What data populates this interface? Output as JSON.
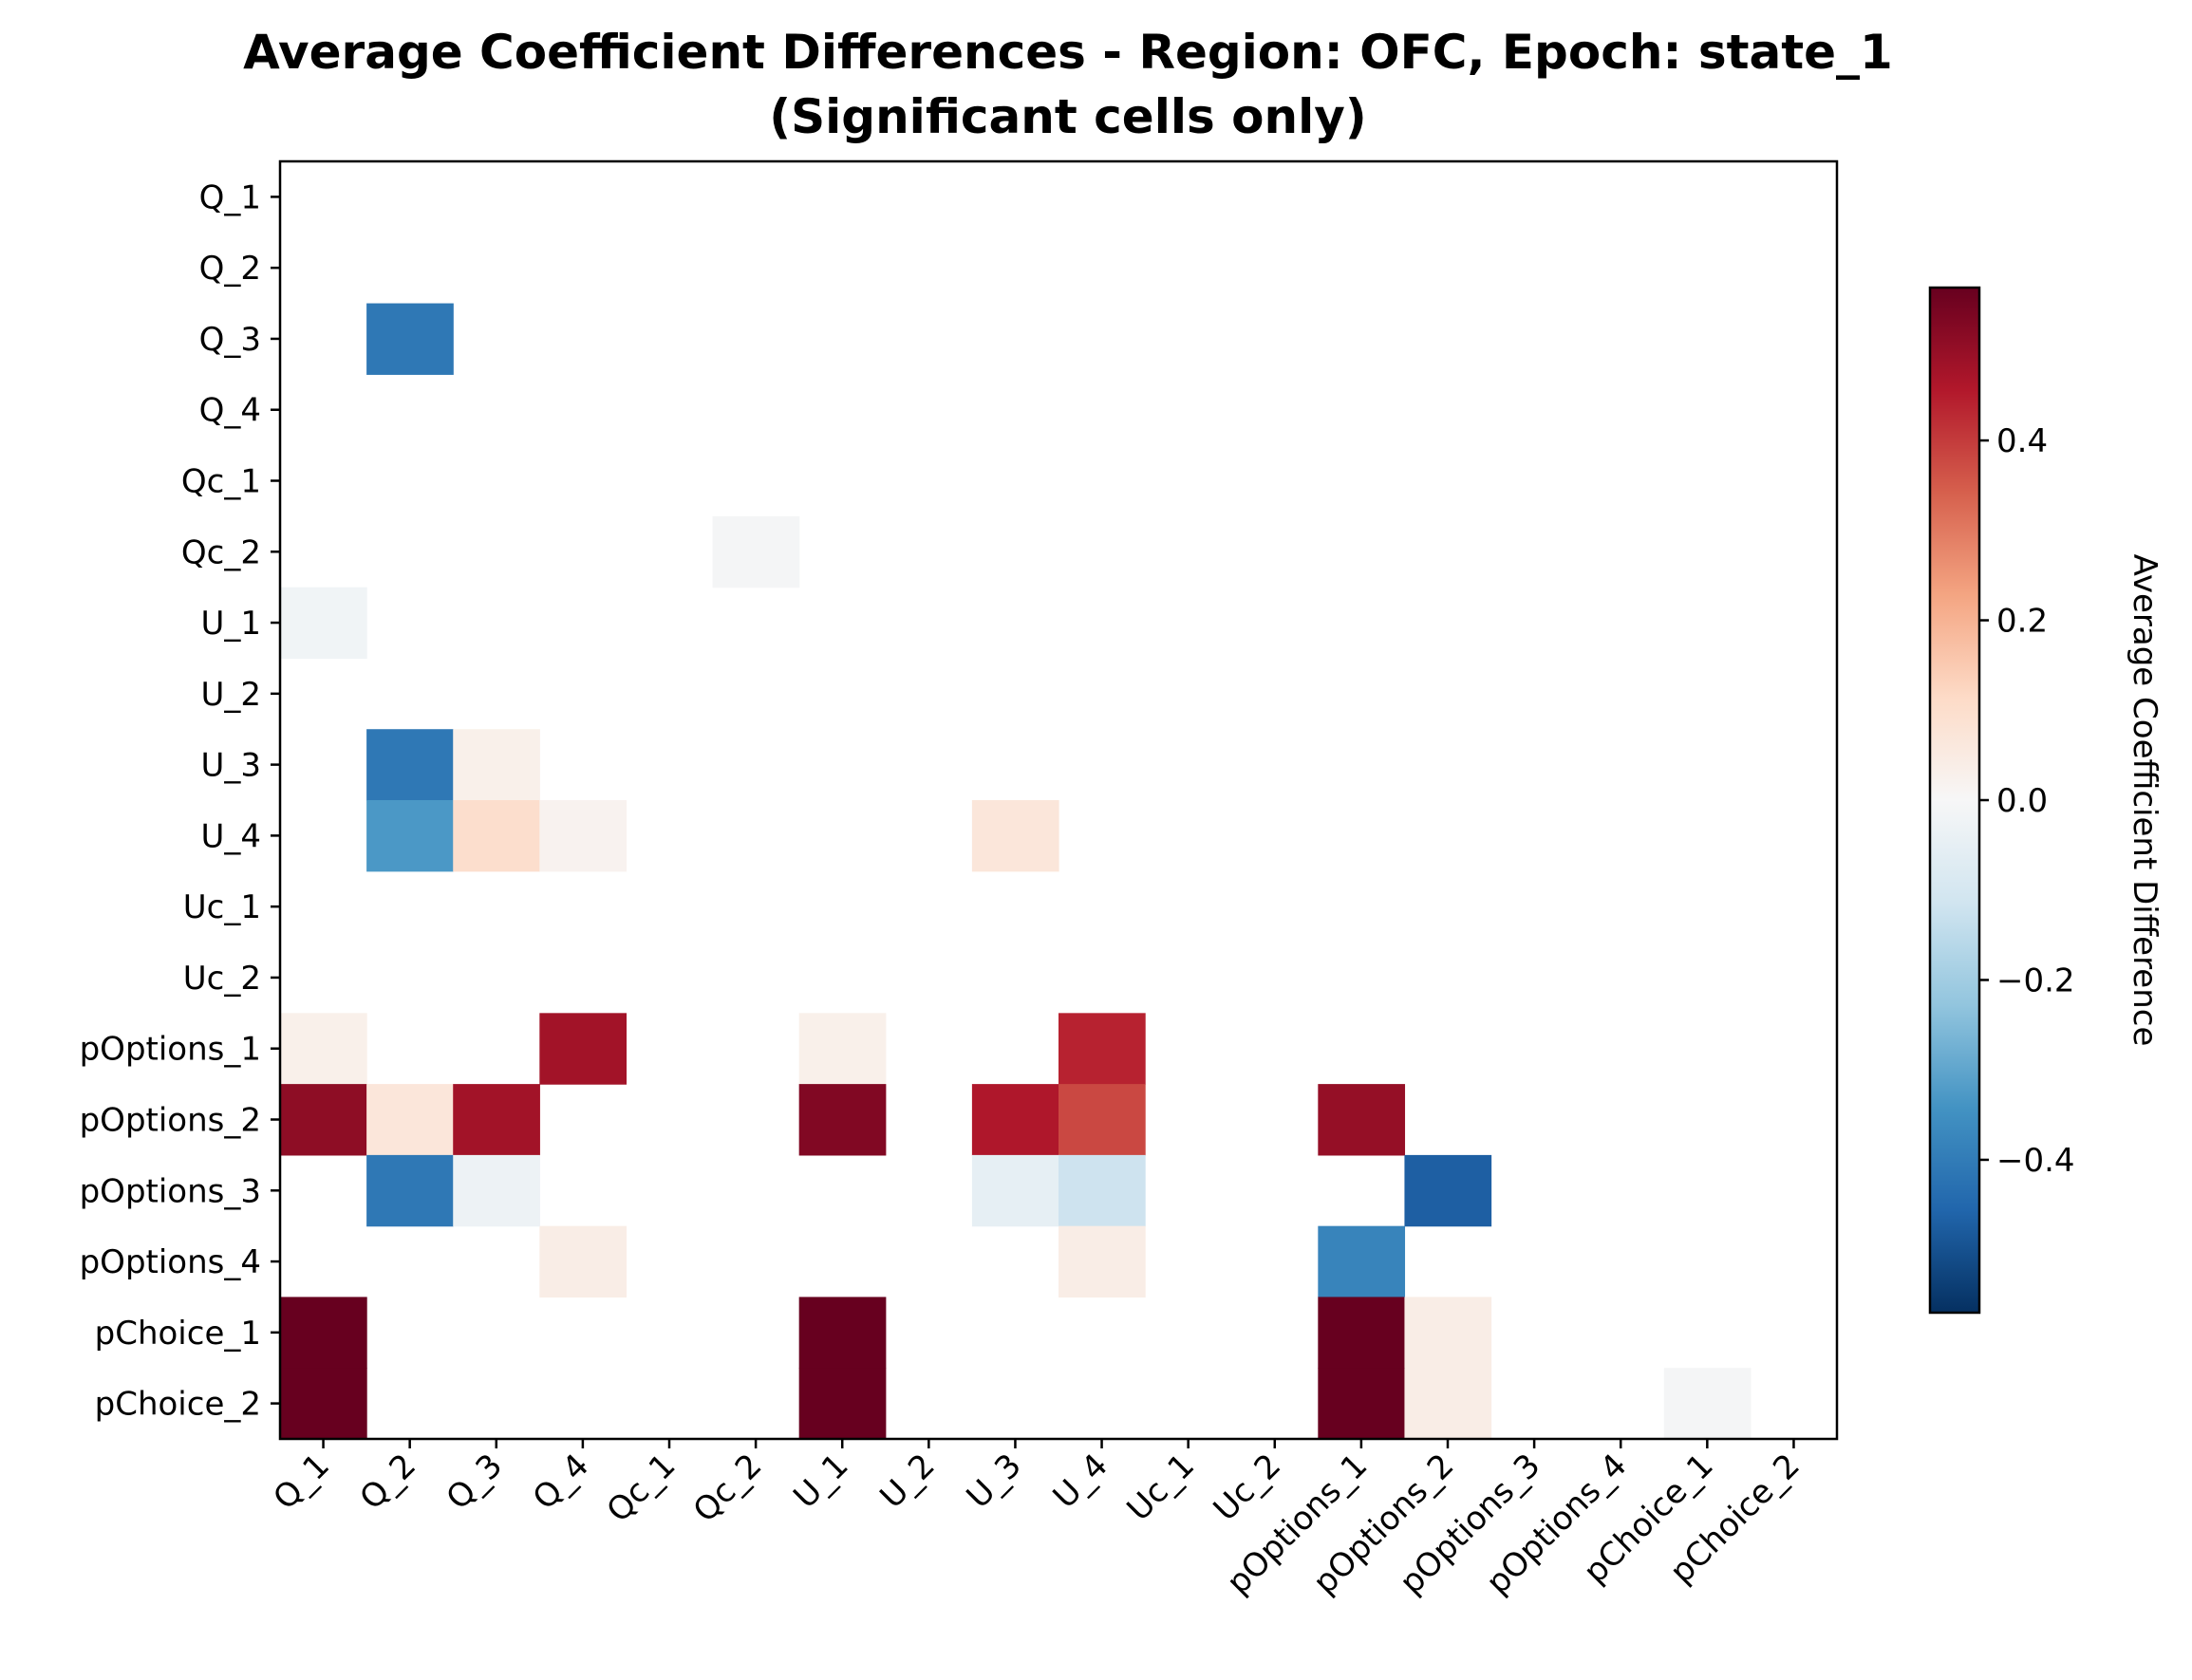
{
  "chart_data": {
    "type": "heatmap",
    "title": "Average Coefficient Differences - Region: OFC, Epoch: state_1",
    "subtitle": "(Significant cells only)",
    "x_labels": [
      "Q_1",
      "Q_2",
      "Q_3",
      "Q_4",
      "Qc_1",
      "Qc_2",
      "U_1",
      "U_2",
      "U_3",
      "U_4",
      "Uc_1",
      "Uc_2",
      "pOptions_1",
      "pOptions_2",
      "pOptions_3",
      "pOptions_4",
      "pChoice_1",
      "pChoice_2"
    ],
    "y_labels": [
      "Q_1",
      "Q_2",
      "Q_3",
      "Q_4",
      "Qc_1",
      "Qc_2",
      "U_1",
      "U_2",
      "U_3",
      "U_4",
      "Uc_1",
      "Uc_2",
      "pOptions_1",
      "pOptions_2",
      "pOptions_3",
      "pOptions_4",
      "pChoice_1",
      "pChoice_2"
    ],
    "cells": [
      {
        "row": "Q_3",
        "col": "Q_2",
        "value": -0.41
      },
      {
        "row": "Qc_2",
        "col": "Qc_2",
        "value": -0.01
      },
      {
        "row": "U_1",
        "col": "Q_1",
        "value": -0.02
      },
      {
        "row": "U_3",
        "col": "Q_2",
        "value": -0.41
      },
      {
        "row": "U_3",
        "col": "Q_3",
        "value": 0.03
      },
      {
        "row": "U_4",
        "col": "Q_2",
        "value": -0.33
      },
      {
        "row": "U_4",
        "col": "Q_3",
        "value": 0.1
      },
      {
        "row": "U_4",
        "col": "Q_4",
        "value": 0.02
      },
      {
        "row": "U_4",
        "col": "U_3",
        "value": 0.07
      },
      {
        "row": "pOptions_1",
        "col": "Q_1",
        "value": 0.03
      },
      {
        "row": "pOptions_1",
        "col": "Q_4",
        "value": 0.48
      },
      {
        "row": "pOptions_1",
        "col": "U_1",
        "value": 0.03
      },
      {
        "row": "pOptions_1",
        "col": "U_4",
        "value": 0.44
      },
      {
        "row": "pOptions_2",
        "col": "Q_1",
        "value": 0.51
      },
      {
        "row": "pOptions_2",
        "col": "Q_2",
        "value": 0.07
      },
      {
        "row": "pOptions_2",
        "col": "Q_3",
        "value": 0.48
      },
      {
        "row": "pOptions_2",
        "col": "U_1",
        "value": 0.53
      },
      {
        "row": "pOptions_2",
        "col": "U_3",
        "value": 0.46
      },
      {
        "row": "pOptions_2",
        "col": "U_4",
        "value": 0.38
      },
      {
        "row": "pOptions_2",
        "col": "pOptions_1",
        "value": 0.5
      },
      {
        "row": "pOptions_3",
        "col": "Q_2",
        "value": -0.41
      },
      {
        "row": "pOptions_3",
        "col": "Q_3",
        "value": -0.03
      },
      {
        "row": "pOptions_3",
        "col": "U_3",
        "value": -0.05
      },
      {
        "row": "pOptions_3",
        "col": "U_4",
        "value": -0.12
      },
      {
        "row": "pOptions_3",
        "col": "pOptions_2",
        "value": -0.47
      },
      {
        "row": "pOptions_4",
        "col": "Q_4",
        "value": 0.04
      },
      {
        "row": "pOptions_4",
        "col": "U_4",
        "value": 0.04
      },
      {
        "row": "pOptions_4",
        "col": "pOptions_1",
        "value": -0.38
      },
      {
        "row": "pChoice_1",
        "col": "Q_1",
        "value": 0.57
      },
      {
        "row": "pChoice_1",
        "col": "U_1",
        "value": 0.57
      },
      {
        "row": "pChoice_1",
        "col": "pOptions_1",
        "value": 0.57
      },
      {
        "row": "pChoice_1",
        "col": "pOptions_2",
        "value": 0.04
      },
      {
        "row": "pChoice_2",
        "col": "Q_1",
        "value": 0.57
      },
      {
        "row": "pChoice_2",
        "col": "U_1",
        "value": 0.57
      },
      {
        "row": "pChoice_2",
        "col": "pOptions_1",
        "value": 0.57
      },
      {
        "row": "pChoice_2",
        "col": "pOptions_2",
        "value": 0.04
      },
      {
        "row": "pChoice_2",
        "col": "pChoice_1",
        "value": -0.01
      }
    ],
    "colormap": "RdBu_r",
    "colormap_stops": [
      "#053061",
      "#2166ac",
      "#4393c3",
      "#92c5de",
      "#d1e5f0",
      "#f7f7f7",
      "#fddbc7",
      "#f4a582",
      "#d6604d",
      "#b2182b",
      "#67001f"
    ],
    "vmin": -0.57,
    "vmax": 0.57,
    "colorbar": {
      "label": "Average Coefficient Difference",
      "ticks": [
        -0.4,
        -0.2,
        0.0,
        0.2,
        0.4
      ],
      "tick_labels": [
        "−0.4",
        "−0.2",
        "0.0",
        "0.2",
        "0.4"
      ]
    },
    "grid": false,
    "x_tick_rotation": "45 degrees, right-aligned"
  }
}
